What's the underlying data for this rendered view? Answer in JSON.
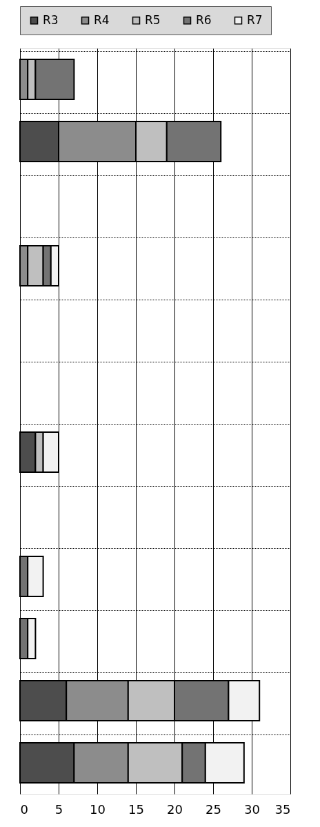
{
  "chart_data": {
    "type": "bar",
    "orientation": "horizontal",
    "stacked": true,
    "categories": [
      null,
      null,
      null,
      null,
      null,
      null,
      null,
      null,
      null,
      null,
      null,
      null
    ],
    "series": [
      {
        "name": "R3",
        "color": "#4d4d4d",
        "values": [
          null,
          5,
          null,
          null,
          null,
          null,
          2,
          null,
          null,
          null,
          6,
          7
        ]
      },
      {
        "name": "R4",
        "color": "#8c8c8c",
        "values": [
          1,
          10,
          null,
          1,
          null,
          null,
          null,
          null,
          null,
          null,
          8,
          7
        ]
      },
      {
        "name": "R5",
        "color": "#bfbfbf",
        "values": [
          1,
          4,
          null,
          2,
          null,
          null,
          1,
          null,
          null,
          null,
          6,
          7
        ]
      },
      {
        "name": "R6",
        "color": "#737373",
        "values": [
          5,
          7,
          null,
          1,
          null,
          null,
          null,
          null,
          1,
          1,
          7,
          3
        ]
      },
      {
        "name": "R7",
        "color": "#f2f2f2",
        "values": [
          null,
          null,
          null,
          1,
          null,
          null,
          2,
          null,
          2,
          1,
          4,
          5
        ]
      }
    ],
    "xlim": [
      0,
      35
    ],
    "xticks": [
      0,
      5,
      10,
      15,
      20,
      25,
      30,
      35
    ],
    "grid": true,
    "legend": "top",
    "tick_labels": "x"
  }
}
